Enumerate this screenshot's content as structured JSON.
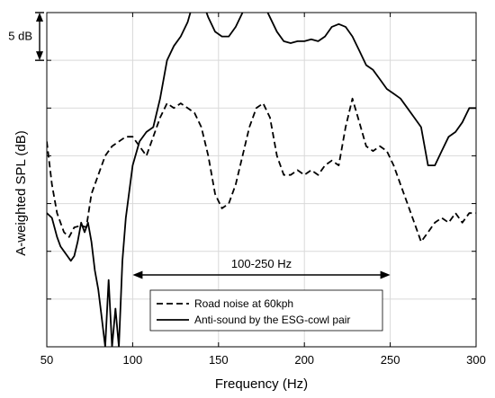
{
  "chart_data": {
    "type": "line",
    "xlabel": "Frequency (Hz)",
    "ylabel": "A-weighted SPL (dB)",
    "xlim": [
      50,
      300
    ],
    "ylim": [
      -35,
      0
    ],
    "xticks": [
      "50",
      "100",
      "150",
      "200",
      "250",
      "300"
    ],
    "grid": true,
    "legend_position": "bottom-center",
    "scale_annotation": "5 dB",
    "band_annotation": {
      "label": "100-250 Hz",
      "from": 100,
      "to": 250
    },
    "series": [
      {
        "name": "Road noise at 60kph",
        "style": "dashed",
        "x": [
          50,
          53,
          56,
          60,
          63,
          66,
          70,
          73,
          76,
          80,
          84,
          88,
          92,
          96,
          100,
          104,
          108,
          112,
          116,
          120,
          124,
          128,
          132,
          136,
          140,
          144,
          148,
          152,
          156,
          160,
          164,
          168,
          172,
          176,
          180,
          184,
          188,
          192,
          196,
          200,
          204,
          208,
          212,
          216,
          220,
          224,
          228,
          232,
          236,
          240,
          244,
          248,
          252,
          256,
          260,
          264,
          268,
          272,
          276,
          280,
          284,
          288,
          292,
          296,
          300
        ],
        "y": [
          -13.5,
          -18,
          -21,
          -23,
          -23.5,
          -22.5,
          -22.3,
          -22.5,
          -19,
          -17,
          -15,
          -14,
          -13.5,
          -13,
          -13,
          -14,
          -15,
          -13,
          -11,
          -9.5,
          -10,
          -9.5,
          -10,
          -10.5,
          -12,
          -15,
          -19,
          -20.5,
          -20,
          -18,
          -15,
          -12,
          -10,
          -9.5,
          -11,
          -15,
          -17,
          -17,
          -16.5,
          -17,
          -16.5,
          -17,
          -16,
          -15.5,
          -16,
          -12,
          -9,
          -11.5,
          -14,
          -14.5,
          -14,
          -14.5,
          -16,
          -18,
          -20,
          -22,
          -24,
          -23,
          -22,
          -21.5,
          -22,
          -21,
          -22,
          -21,
          -21
        ]
      },
      {
        "name": "Anti-sound by the ESG-cowl pair",
        "style": "solid",
        "x": [
          50,
          53,
          56,
          58,
          60,
          62,
          64,
          66,
          68,
          70,
          72,
          74,
          76,
          78,
          80,
          82,
          84,
          86,
          88,
          90,
          92,
          94,
          96,
          100,
          104,
          108,
          112,
          116,
          120,
          124,
          128,
          132,
          136,
          140,
          144,
          148,
          152,
          156,
          160,
          164,
          168,
          172,
          176,
          180,
          184,
          188,
          192,
          196,
          200,
          204,
          208,
          212,
          216,
          220,
          224,
          228,
          232,
          236,
          240,
          244,
          248,
          252,
          256,
          260,
          264,
          268,
          272,
          276,
          280,
          284,
          288,
          292,
          296,
          300
        ],
        "y": [
          -21,
          -21.5,
          -23.5,
          -24.5,
          -25,
          -25.5,
          -26,
          -25.5,
          -24,
          -22,
          -23,
          -22,
          -24,
          -27,
          -29,
          -32,
          -35,
          -28,
          -35,
          -31,
          -35,
          -26,
          -21.5,
          -16,
          -13.5,
          -12.5,
          -12,
          -9,
          -5,
          -3.5,
          -2.5,
          -1,
          1.5,
          1.5,
          -0.5,
          -2,
          -2.5,
          -2.5,
          -1.5,
          0,
          1,
          1.3,
          1,
          -0.5,
          -2,
          -3,
          -3.2,
          -3,
          -3,
          -2.8,
          -3,
          -2.5,
          -1.5,
          -1.2,
          -1.5,
          -2.5,
          -4,
          -5.5,
          -6,
          -7,
          -8,
          -8.5,
          -9,
          -10,
          -11,
          -12,
          -16,
          -16,
          -14.5,
          -13,
          -12.5,
          -11.5,
          -10,
          -10
        ]
      }
    ]
  }
}
